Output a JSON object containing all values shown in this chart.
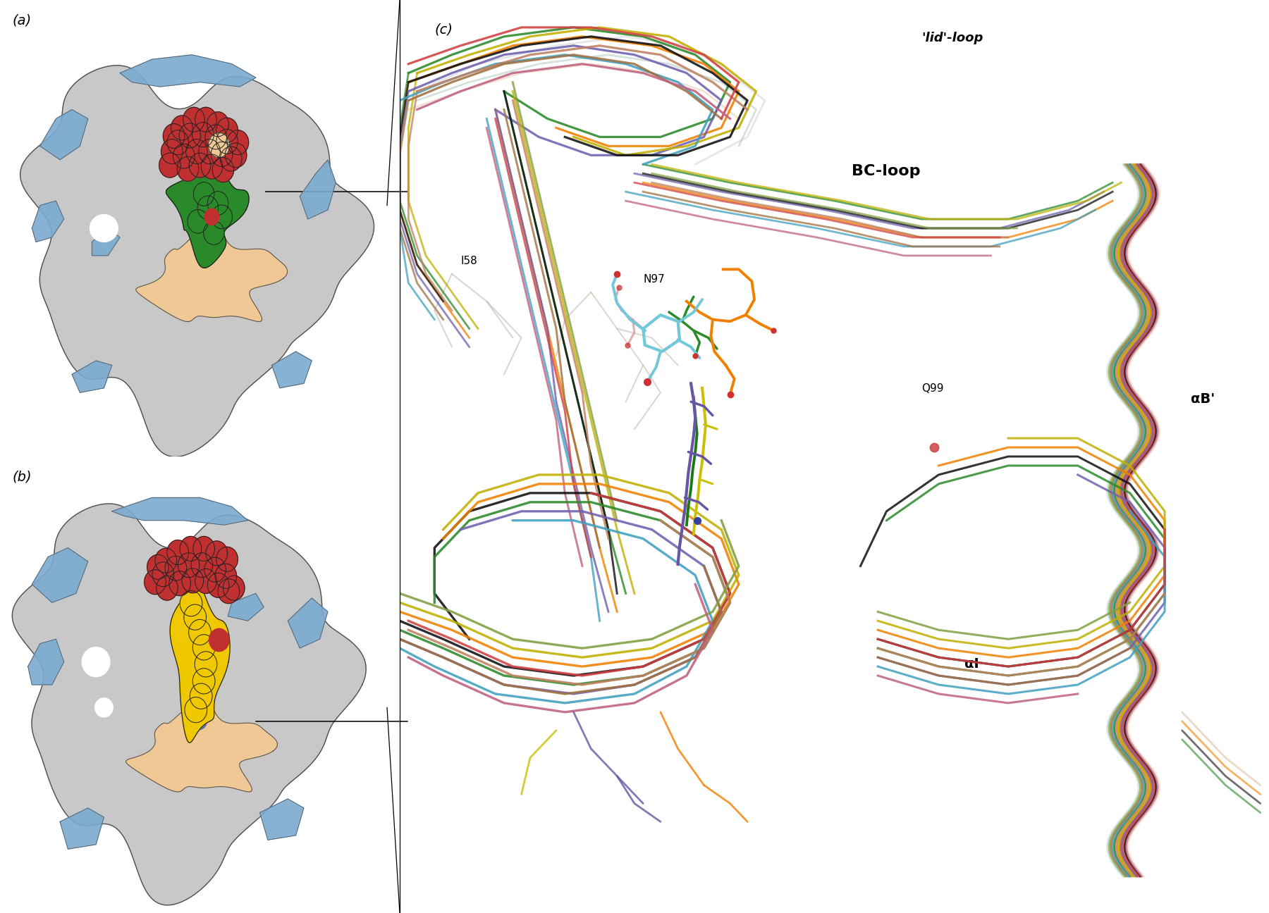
{
  "figure_width": 18.0,
  "figure_height": 12.96,
  "bg_color": "#ffffff",
  "panel_a_label": "(a)",
  "panel_b_label": "(b)",
  "panel_c_label": "(c)",
  "label_fontsize": 14,
  "annotation_fontsize": 11,
  "colors": {
    "protein_surface_gray": "#c8c8c8",
    "protein_surface_blue": "#7aaad0",
    "protein_surface_outline": "#505050",
    "red_spheres": "#c03030",
    "green_spheres": "#2a8a2a",
    "tan_spheres": "#f0c896",
    "yellow_spheres": "#f0c800",
    "blue_accent": "#4060c0",
    "white": "#ffffff"
  },
  "ribbon_colors": [
    "#2a8a2a",
    "#f08000",
    "#7060b0",
    "#c0b000",
    "#40a0c0",
    "#c08060",
    "#a07040",
    "#404040",
    "#101010",
    "#d04040",
    "#80a040",
    "#c06080"
  ],
  "annotations_c": {
    "lid_loop": "'lid'-loop",
    "bc_loop": "BC-loop",
    "ab_prime": "αB'",
    "alpha_i": "αI",
    "i58": "I58",
    "n97": "N97",
    "q99": "Q99"
  }
}
